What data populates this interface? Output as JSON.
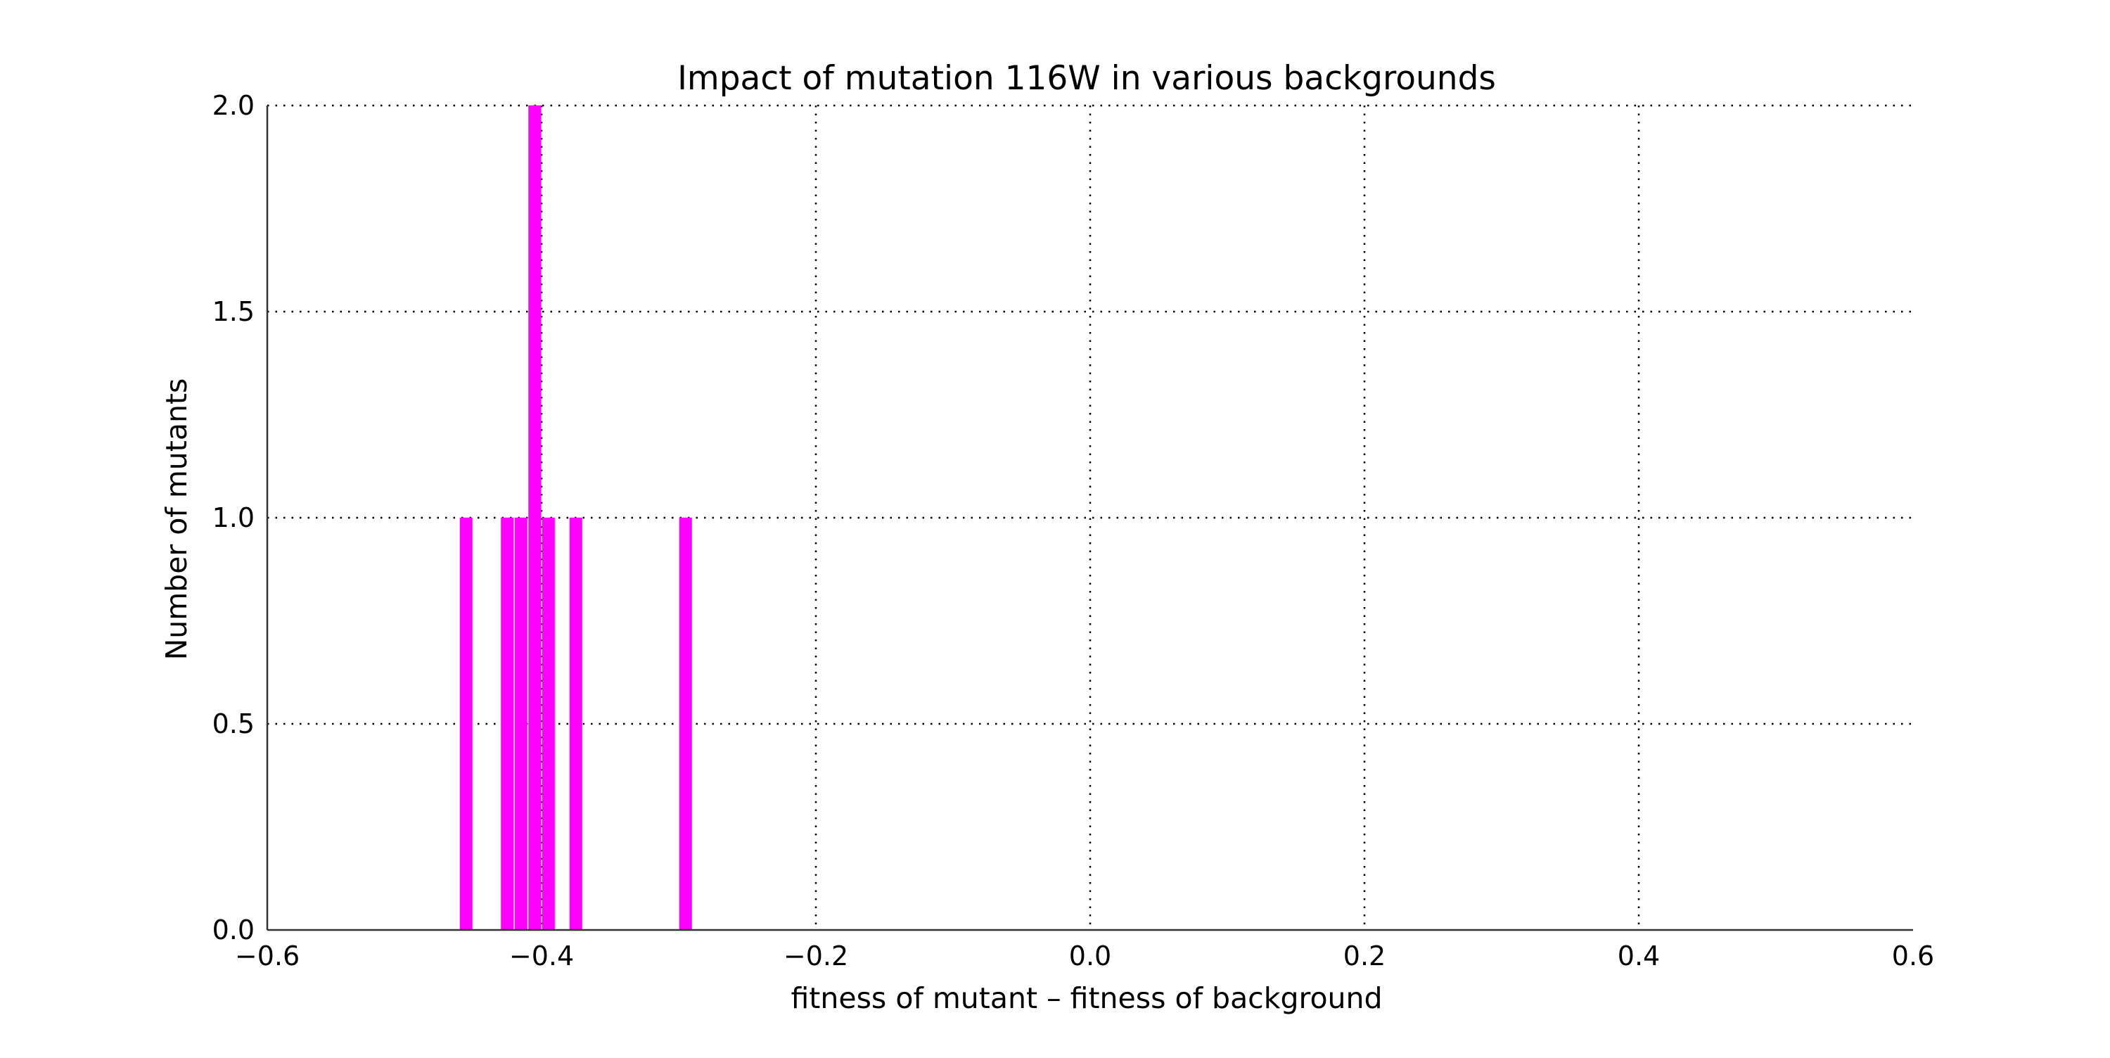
{
  "chart_data": {
    "type": "bar",
    "title": "Impact of mutation 116W in various backgrounds",
    "xlabel": "fitness of mutant  –  fitness of background",
    "ylabel": "Number of mutants",
    "xlim": [
      -0.6,
      0.6
    ],
    "ylim": [
      0.0,
      2.0
    ],
    "x_ticks": [
      -0.6,
      -0.4,
      -0.2,
      0.0,
      0.2,
      0.4,
      0.6
    ],
    "x_tick_labels": [
      "−0.6",
      "−0.4",
      "−0.2",
      "0.0",
      "0.2",
      "0.4",
      "0.6"
    ],
    "y_ticks": [
      0.0,
      0.5,
      1.0,
      1.5,
      2.0
    ],
    "y_tick_labels": [
      "0.0",
      "0.5",
      "1.0",
      "1.5",
      "2.0"
    ],
    "grid": true,
    "bar_color": "#ff00ff",
    "bins": [
      {
        "x0": -0.4595,
        "x1": -0.4505,
        "count": 1
      },
      {
        "x0": -0.4295,
        "x1": -0.4205,
        "count": 1
      },
      {
        "x0": -0.4195,
        "x1": -0.4105,
        "count": 1
      },
      {
        "x0": -0.4095,
        "x1": -0.4005,
        "count": 2
      },
      {
        "x0": -0.3995,
        "x1": -0.3905,
        "count": 1
      },
      {
        "x0": -0.3795,
        "x1": -0.3705,
        "count": 1
      },
      {
        "x0": -0.2995,
        "x1": -0.2905,
        "count": 1
      }
    ]
  }
}
